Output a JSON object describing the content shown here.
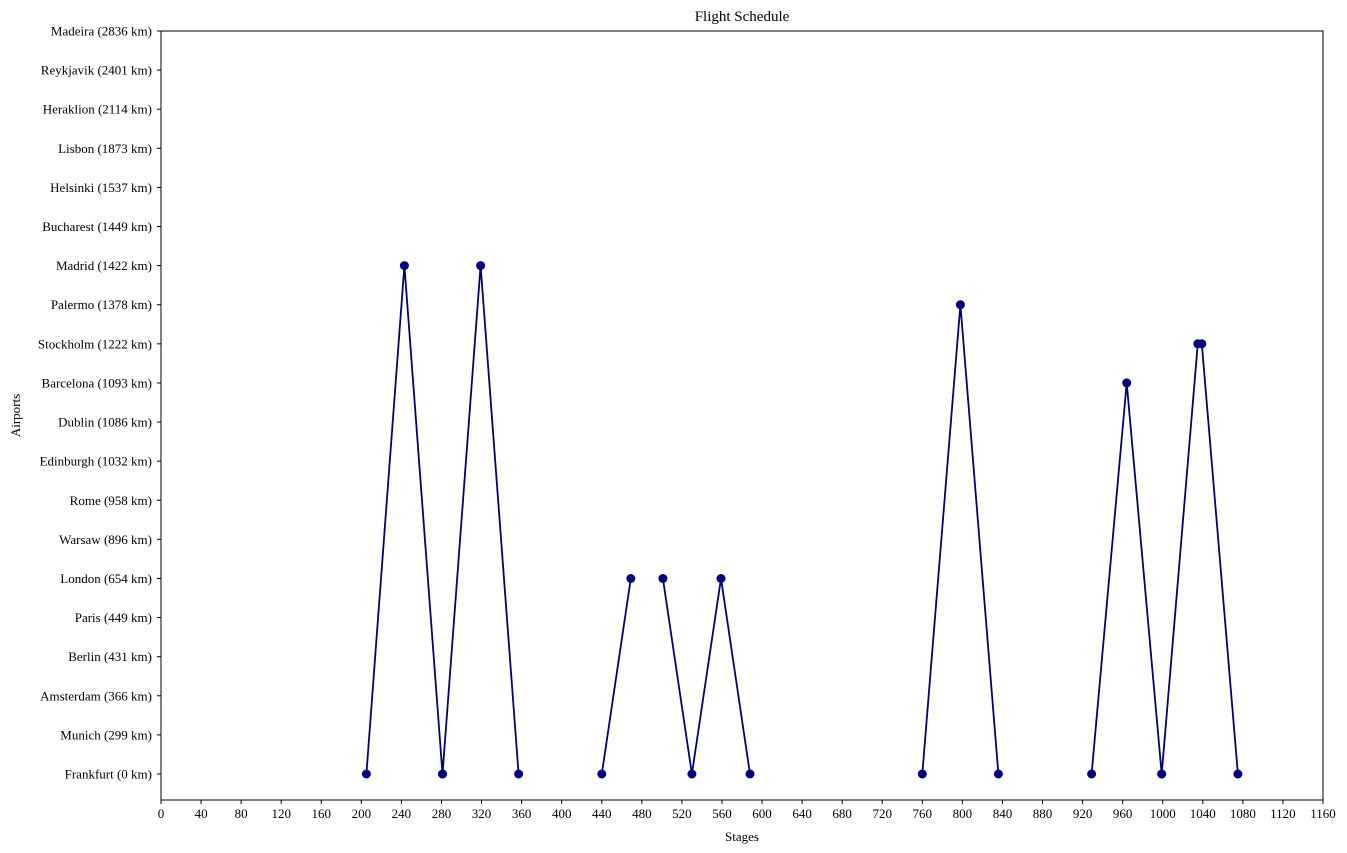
{
  "chart_data": {
    "type": "line",
    "title": "Flight Schedule",
    "xlabel": "Stages",
    "ylabel": "Airports",
    "xlim": [
      0,
      1160
    ],
    "x_ticks": [
      0,
      40,
      80,
      120,
      160,
      200,
      240,
      280,
      320,
      360,
      400,
      440,
      480,
      520,
      560,
      600,
      640,
      680,
      720,
      760,
      800,
      840,
      880,
      920,
      960,
      1000,
      1040,
      1080,
      1120,
      1160
    ],
    "categories": [
      "Frankfurt (0 km)",
      "Munich (299 km)",
      "Amsterdam (366 km)",
      "Berlin (431 km)",
      "Paris (449 km)",
      "London (654 km)",
      "Warsaw (896 km)",
      "Rome (958 km)",
      "Edinburgh (1032 km)",
      "Dublin (1086 km)",
      "Barcelona (1093 km)",
      "Stockholm (1222 km)",
      "Palermo (1378 km)",
      "Madrid (1422 km)",
      "Bucharest (1449 km)",
      "Helsinki (1537 km)",
      "Lisbon (1873 km)",
      "Heraklion (2114 km)",
      "Reykjavik (2401 km)",
      "Madeira (2836 km)"
    ],
    "series_color": "#000080",
    "grid": false,
    "segments": [
      {
        "points": [
          {
            "x": 205,
            "y": "Frankfurt (0 km)"
          },
          {
            "x": 243,
            "y": "Madrid (1422 km)"
          },
          {
            "x": 281,
            "y": "Frankfurt (0 km)"
          }
        ]
      },
      {
        "points": [
          {
            "x": 281,
            "y": "Frankfurt (0 km)"
          },
          {
            "x": 319,
            "y": "Madrid (1422 km)"
          },
          {
            "x": 357,
            "y": "Frankfurt (0 km)"
          }
        ]
      },
      {
        "points": [
          {
            "x": 440,
            "y": "Frankfurt (0 km)"
          },
          {
            "x": 469,
            "y": "London (654 km)"
          }
        ]
      },
      {
        "points": [
          {
            "x": 501,
            "y": "London (654 km)"
          },
          {
            "x": 530,
            "y": "Frankfurt (0 km)"
          },
          {
            "x": 559,
            "y": "London (654 km)"
          },
          {
            "x": 588,
            "y": "Frankfurt (0 km)"
          }
        ]
      },
      {
        "points": [
          {
            "x": 760,
            "y": "Frankfurt (0 km)"
          },
          {
            "x": 798,
            "y": "Palermo (1378 km)"
          },
          {
            "x": 836,
            "y": "Frankfurt (0 km)"
          }
        ]
      },
      {
        "points": [
          {
            "x": 929,
            "y": "Frankfurt (0 km)"
          },
          {
            "x": 964,
            "y": "Barcelona (1093 km)"
          },
          {
            "x": 999,
            "y": "Frankfurt (0 km)"
          }
        ]
      },
      {
        "points": [
          {
            "x": 999,
            "y": "Frankfurt (0 km)"
          },
          {
            "x": 1035,
            "y": "Stockholm (1222 km)"
          }
        ]
      },
      {
        "points": [
          {
            "x": 1039,
            "y": "Stockholm (1222 km)"
          },
          {
            "x": 1075,
            "y": "Frankfurt (0 km)"
          }
        ]
      }
    ]
  }
}
